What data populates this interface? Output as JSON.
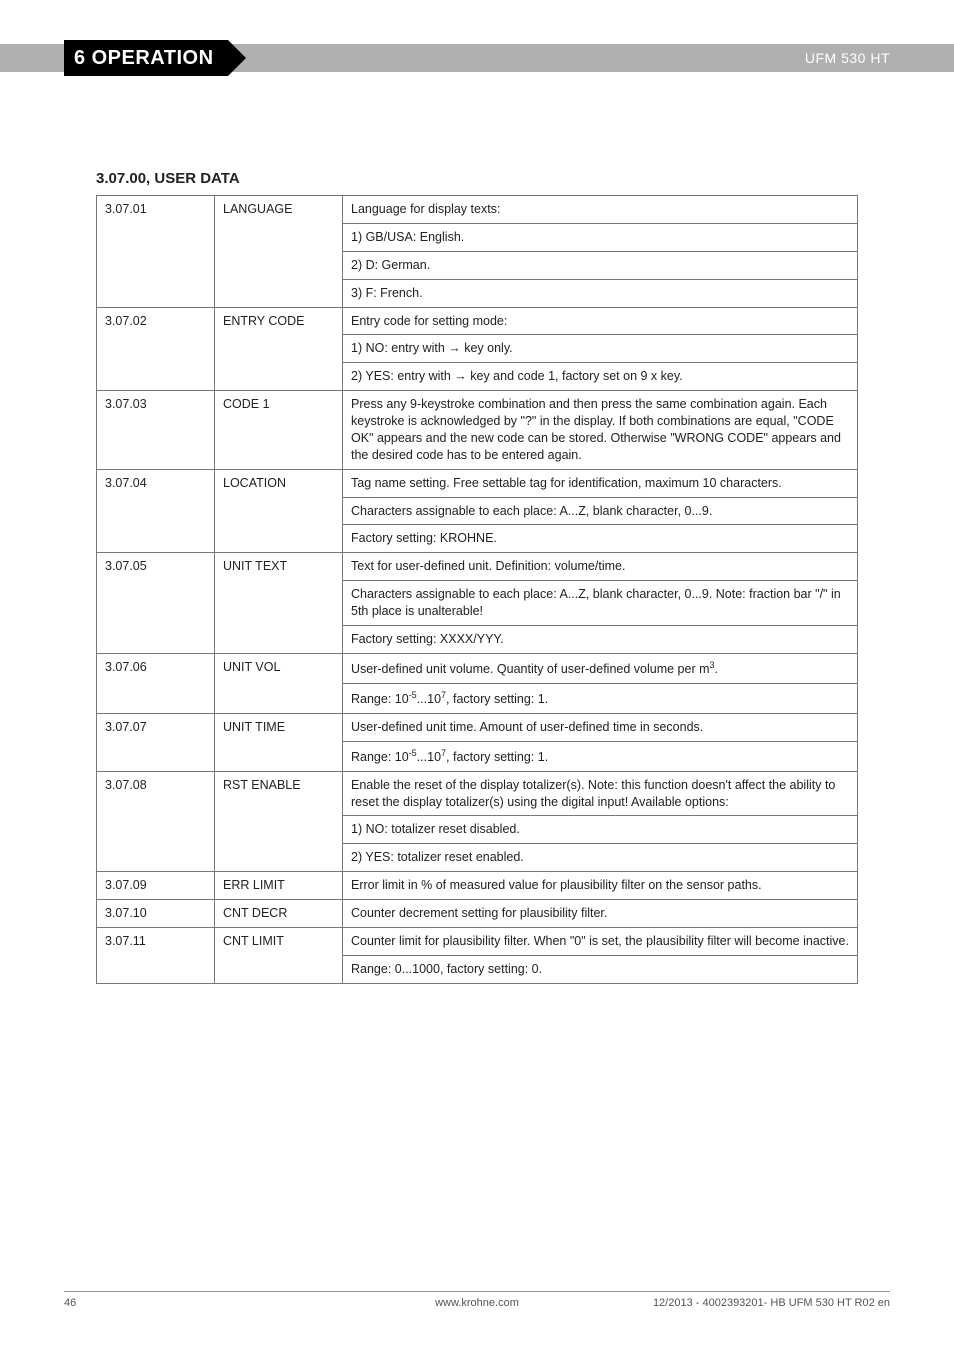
{
  "header": {
    "section_number": "6",
    "section_title": "OPERATION",
    "product": "UFM 530 HT"
  },
  "table": {
    "title": "3.07.00, USER DATA",
    "rows": [
      {
        "type": "group-start",
        "code": "3.07.01",
        "param": "LANGUAGE",
        "desc": "Language for display texts:"
      },
      {
        "type": "sub",
        "desc": "1) GB/USA: English."
      },
      {
        "type": "sub",
        "desc": "2) D: German."
      },
      {
        "type": "sub",
        "desc": "3) F: French."
      },
      {
        "type": "group-start",
        "code": "3.07.02",
        "param": "ENTRY CODE",
        "desc": "Entry code for setting mode:"
      },
      {
        "type": "sub",
        "desc": "1) NO: entry with  → key only."
      },
      {
        "type": "sub",
        "desc": "2) YES: entry with → key and code 1, factory set on 9 x key."
      },
      {
        "type": "single",
        "code": "3.07.03",
        "param": "CODE 1",
        "desc": "Press any 9-keystroke combination and then press the same combination again. Each keystroke is acknowledged by \"?\" in the display. If both combinations are equal, \"CODE OK\" appears and the new code can be stored. Otherwise \"WRONG CODE\" appears and the desired code has to be entered again."
      },
      {
        "type": "group-start",
        "code": "3.07.04",
        "param": "LOCATION",
        "desc": "Tag name setting. Free settable tag for identification, maximum 10 characters."
      },
      {
        "type": "sub",
        "desc": "Characters assignable to each place: A...Z, blank character, 0...9."
      },
      {
        "type": "sub",
        "desc": "Factory setting: KROHNE."
      },
      {
        "type": "group-start",
        "code": "3.07.05",
        "param": "UNIT TEXT",
        "desc": "Text for user-defined unit. Definition: volume/time."
      },
      {
        "type": "sub",
        "desc": "Characters assignable to each place: A...Z, blank character, 0...9. Note: fraction bar \"/\" in 5th place is unalterable!"
      },
      {
        "type": "sub",
        "desc": "Factory setting: XXXX/YYY."
      },
      {
        "type": "group-start",
        "code": "3.07.06",
        "param": "UNIT VOL",
        "desc_html": "User-defined unit volume. Quantity of user-defined volume per m<sup>3</sup>."
      },
      {
        "type": "sub",
        "desc_html": "Range: 10<sup>-5</sup>...10<sup>7</sup>, factory setting: 1."
      },
      {
        "type": "group-start",
        "code": "3.07.07",
        "param": "UNIT TIME",
        "desc": "User-defined unit time. Amount of user-defined time in seconds."
      },
      {
        "type": "sub",
        "desc_html": "Range: 10<sup>-5</sup>...10<sup>7</sup>, factory setting: 1."
      },
      {
        "type": "group-start",
        "code": "3.07.08",
        "param": "RST ENABLE",
        "desc": "Enable the reset of the display totalizer(s). Note: this function doesn't affect the ability to reset the display totalizer(s) using the digital input! Available options:"
      },
      {
        "type": "sub",
        "desc": "1) NO: totalizer reset disabled."
      },
      {
        "type": "sub",
        "desc": "2) YES: totalizer reset enabled."
      },
      {
        "type": "single",
        "code": "3.07.09",
        "param": "ERR LIMIT",
        "desc": "Error limit in % of measured value for plausibility filter on the sensor paths."
      },
      {
        "type": "single",
        "code": "3.07.10",
        "param": "CNT DECR",
        "desc": "Counter decrement setting for plausibility filter."
      },
      {
        "type": "group-start",
        "code": "3.07.11",
        "param": "CNT LIMIT",
        "desc": "Counter limit for plausibility filter. When \"0\" is set, the plausibility filter will become inactive."
      },
      {
        "type": "sub",
        "desc": "Range: 0...1000, factory setting: 0."
      }
    ]
  },
  "footer": {
    "page": "46",
    "site": "www.krohne.com",
    "rev": "12/2013 - 4002393201- HB UFM 530 HT R02 en"
  }
}
